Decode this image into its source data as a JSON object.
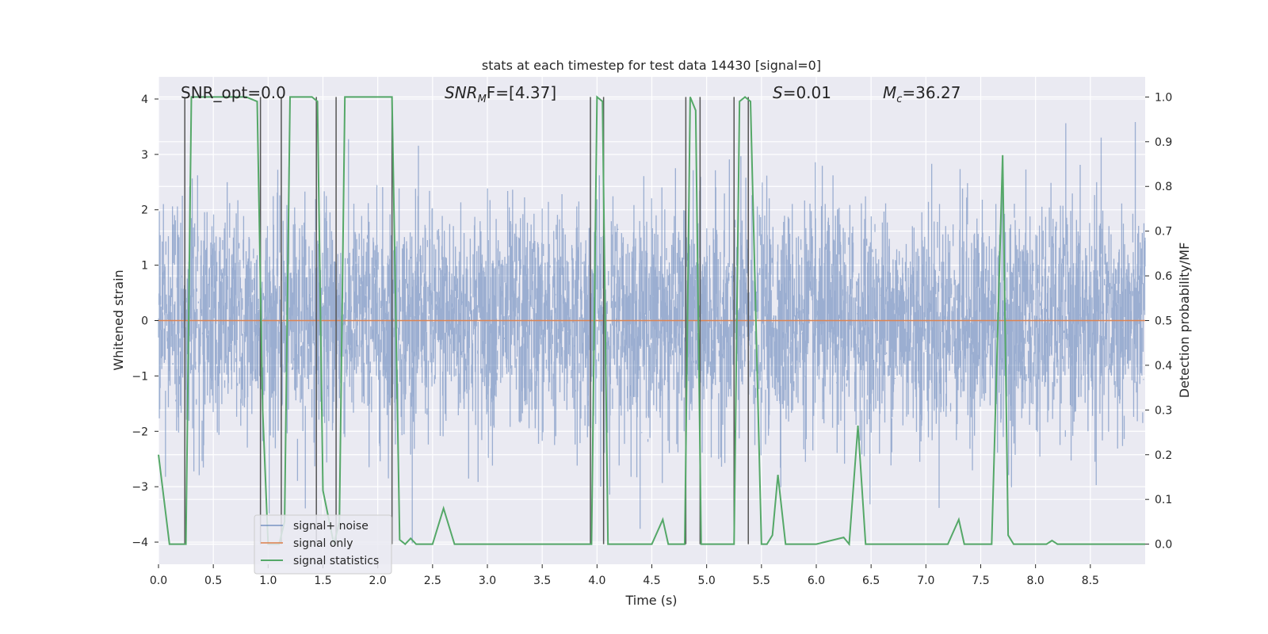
{
  "chart_data": {
    "type": "line",
    "title": "stats at each timestep for test data 14430 [signal=0]",
    "xlabel": "Time (s)",
    "ylabel": "Whitened strain",
    "ylabel_right": "Detection probability/MF",
    "xlim": [
      0,
      9.0
    ],
    "ylim": [
      -4.4,
      4.4
    ],
    "ylim_right": [
      -0.045,
      1.045
    ],
    "x_ticks": [
      0.0,
      0.5,
      1.0,
      1.5,
      2.0,
      2.5,
      3.0,
      3.5,
      4.0,
      4.5,
      5.0,
      5.5,
      6.0,
      6.5,
      7.0,
      7.5,
      8.0,
      8.5
    ],
    "x_tick_labels": [
      "0.0",
      "0.5",
      "1.0",
      "1.5",
      "2.0",
      "2.5",
      "3.0",
      "3.5",
      "4.0",
      "4.5",
      "5.0",
      "5.5",
      "6.0",
      "6.5",
      "7.0",
      "7.5",
      "8.0",
      "8.5"
    ],
    "y_ticks": [
      4,
      3,
      2,
      1,
      0,
      -1,
      -2,
      -3,
      -4
    ],
    "y_tick_labels": [
      "4",
      "3",
      "2",
      "1",
      "0",
      "−1",
      "−2",
      "−3",
      "−4"
    ],
    "y2_ticks": [
      1.0,
      0.9,
      0.8,
      0.7,
      0.6,
      0.5,
      0.4,
      0.3,
      0.2,
      0.1,
      0.0
    ],
    "y2_tick_labels": [
      "1.0",
      "0.9",
      "0.8",
      "0.7",
      "0.6",
      "0.5",
      "0.4",
      "0.3",
      "0.2",
      "0.1",
      "0.0"
    ],
    "annotations": {
      "snr_opt": "SNR_opt=0.0",
      "snr_mf_sym": "SNR",
      "snr_mf_sub": "M",
      "snr_mf_rest": "F=[4.37]",
      "s_sym": "S",
      "s_rest": "=0.01",
      "mc_sym": "M",
      "mc_sub": "c",
      "mc_rest": "=36.27"
    },
    "legend": {
      "placement": "lower-left",
      "entries": [
        "signal+ noise",
        "signal only",
        "signal statistics"
      ]
    },
    "series": [
      {
        "name": "signal+ noise",
        "color": "#4c72b0",
        "kind": "noise",
        "sigma": 1.0
      },
      {
        "name": "signal only",
        "color": "#dd8452",
        "kind": "constant",
        "value": 0.0
      },
      {
        "name": "signal statistics",
        "color": "#55a868",
        "axis": "right",
        "x": [
          0.0,
          0.05,
          0.1,
          0.25,
          0.3,
          0.4,
          0.5,
          0.6,
          0.7,
          0.8,
          0.9,
          0.95,
          1.0,
          1.1,
          1.15,
          1.2,
          1.3,
          1.4,
          1.45,
          1.5,
          1.6,
          1.65,
          1.7,
          1.8,
          2.0,
          2.1,
          2.13,
          2.2,
          2.25,
          2.3,
          2.35,
          2.45,
          2.5,
          2.6,
          2.7,
          2.75,
          3.0,
          3.5,
          3.9,
          3.95,
          4.0,
          4.05,
          4.1,
          4.5,
          4.6,
          4.65,
          4.7,
          4.8,
          4.85,
          4.9,
          4.95,
          5.0,
          5.25,
          5.3,
          5.35,
          5.4,
          5.5,
          5.55,
          5.6,
          5.65,
          5.72,
          5.75,
          5.8,
          6.0,
          6.25,
          6.3,
          6.38,
          6.45,
          6.5,
          7.0,
          7.2,
          7.3,
          7.35,
          7.4,
          7.55,
          7.6,
          7.7,
          7.75,
          7.8,
          7.9,
          8.1,
          8.15,
          8.2,
          8.5,
          9.0
        ],
        "y": [
          0.2,
          0.1,
          0.0,
          0.0,
          1.0,
          1.0,
          1.0,
          1.0,
          1.0,
          1.0,
          0.99,
          0.3,
          0.0,
          0.0,
          0.05,
          1.0,
          1.0,
          1.0,
          0.99,
          0.12,
          0.0,
          0.05,
          1.0,
          1.0,
          1.0,
          1.0,
          1.0,
          0.01,
          0.0,
          0.013,
          0.0,
          0.0,
          0.0,
          0.08,
          0.0,
          0.0,
          0.0,
          0.0,
          0.0,
          0.0,
          1.0,
          0.99,
          0.0,
          0.0,
          0.055,
          0.0,
          0.0,
          0.0,
          1.0,
          0.97,
          0.0,
          0.0,
          0.0,
          0.99,
          1.0,
          0.99,
          0.0,
          0.0,
          0.02,
          0.155,
          0.0,
          0.0,
          0.0,
          0.0,
          0.015,
          0.0,
          0.265,
          0.0,
          0.0,
          0.0,
          0.0,
          0.055,
          0.0,
          0.0,
          0.0,
          0.0,
          0.87,
          0.02,
          0.0,
          0.0,
          0.0,
          0.008,
          0.0,
          0.0,
          0.0
        ]
      }
    ],
    "vlines": [
      0.24,
      0.93,
      1.12,
      1.44,
      1.62,
      2.13,
      3.94,
      4.06,
      4.81,
      4.94,
      5.25,
      5.38
    ],
    "colors": {
      "background": "#eaeaf2",
      "grid": "#ffffff",
      "vline": "#555555"
    }
  }
}
